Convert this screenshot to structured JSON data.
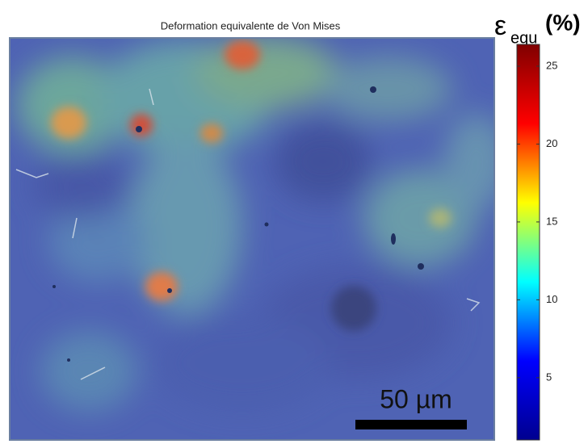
{
  "chart_data": {
    "type": "heatmap",
    "title": "Deformation equivalente de Von Mises",
    "colorbar_symbol": "ε",
    "colorbar_subscript": "equ",
    "colorbar_unit": "(%)",
    "scale_bar_label": "50 µm",
    "colormap": [
      "#00008f",
      "#0000ff",
      "#00ffff",
      "#ffff00",
      "#ff0000",
      "#800000"
    ],
    "clim": [
      1,
      26.4
    ],
    "cticks": [
      5,
      10,
      15,
      20,
      25
    ]
  }
}
